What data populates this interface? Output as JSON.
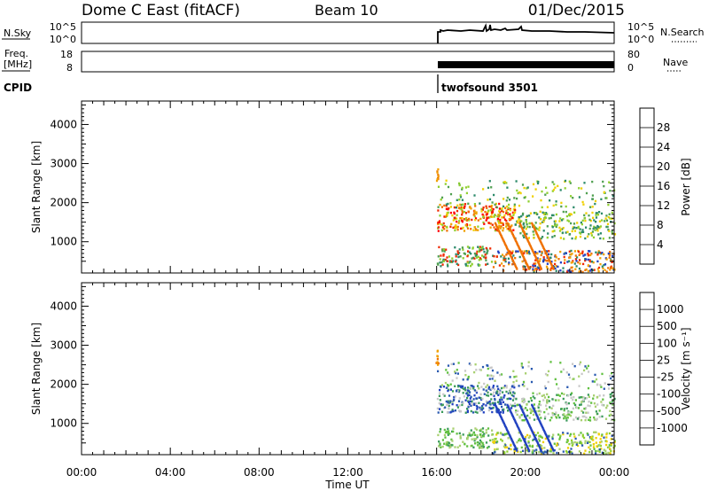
{
  "header": {
    "station": "Dome C East (fitACF)",
    "beam": "Beam 10",
    "date": "01/Dec/2015"
  },
  "status_panels": {
    "nsky_label": "N.Sky",
    "nsky_ticks": [
      "10^5",
      "10^0"
    ],
    "nsearch_label": "N.Search",
    "nsearch_ticks": [
      "10^5",
      "10^0"
    ],
    "freq_label_1": "Freq.",
    "freq_label_2": "[MHz]",
    "freq_ticks": [
      "18",
      "8"
    ],
    "nave_label": "Nave",
    "nave_ticks": [
      "80",
      "0"
    ],
    "cpid_label": "CPID",
    "cpid_value": "twofsound 3501",
    "data_start": "16:00"
  },
  "chart_data": [
    {
      "type": "heatmap",
      "name": "power",
      "ylabel": "Slant Range [km]",
      "yticks": [
        1000,
        2000,
        3000,
        4000
      ],
      "ylim": [
        200,
        4600
      ],
      "xlim_hours": [
        0,
        24
      ],
      "colorbar_label": "Power [dB]",
      "colorbar_ticks": [
        "28",
        "24",
        "20",
        "16",
        "12",
        "8",
        "4"
      ],
      "colorbar_colors": [
        "#0000ff",
        "#2040c0",
        "#2c8a6a",
        "#50a050",
        "#90d030",
        "#f0d000",
        "#f0a000",
        "#f07000",
        "#f02800",
        "#ff0000"
      ],
      "echo_regions": [
        {
          "t0": 16.0,
          "t1": 24.0,
          "r0": 900,
          "r1": 2600,
          "note": "band"
        },
        {
          "t0": 16.0,
          "t1": 24.0,
          "r0": 250,
          "r1": 900,
          "note": "lower band"
        }
      ]
    },
    {
      "type": "heatmap",
      "name": "velocity",
      "ylabel": "Slant Range [km]",
      "yticks": [
        1000,
        2000,
        3000,
        4000
      ],
      "ylim": [
        200,
        4600
      ],
      "xlim_hours": [
        0,
        24
      ],
      "xticks": [
        "00:00",
        "04:00",
        "08:00",
        "12:00",
        "16:00",
        "20:00",
        "00:00"
      ],
      "xlabel": "Time UT",
      "colorbar_label": "Velocity [m s⁻¹]",
      "colorbar_ticks": [
        "1000",
        "500",
        "100",
        "25",
        "-25",
        "-100",
        "-500",
        "-1000"
      ],
      "colorbar_colors": [
        "#ff0000",
        "#f04000",
        "#f07800",
        "#f0a000",
        "#c8c8c8",
        "#c8c8c8",
        "#60c040",
        "#3a9a5a",
        "#2a5ab0",
        "#2040c0"
      ]
    }
  ]
}
